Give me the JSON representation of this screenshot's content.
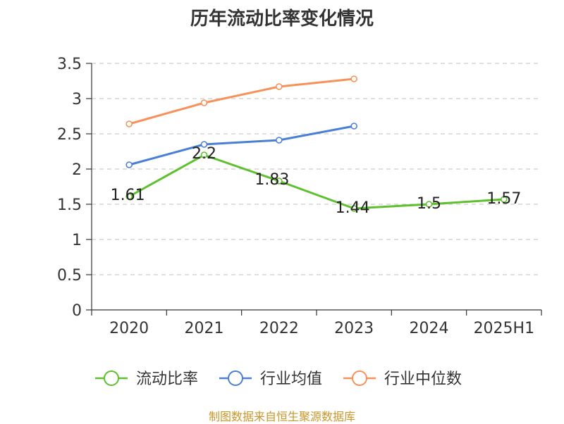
{
  "chart_data": {
    "type": "line",
    "title": "历年流动比率变化情况",
    "categories": [
      "2020",
      "2021",
      "2022",
      "2023",
      "2024",
      "2025H1"
    ],
    "ylim": [
      0,
      3.5
    ],
    "yticks": [
      "0",
      "0.5",
      "1",
      "1.5",
      "2",
      "2.5",
      "3",
      "3.5"
    ],
    "grid": true,
    "legend_position": "bottom",
    "series": [
      {
        "name": "流动比率",
        "color": "#5dc02c",
        "values": [
          1.61,
          2.2,
          1.83,
          1.44,
          1.5,
          1.57
        ],
        "labels": [
          "1.61",
          "2.2",
          "1.83",
          "1.44",
          "1.5",
          "1.57"
        ]
      },
      {
        "name": "行业均值",
        "color": "#4a7fd6",
        "values": [
          2.06,
          2.35,
          2.41,
          2.61,
          null,
          null
        ]
      },
      {
        "name": "行业中位数",
        "color": "#f7915a",
        "values": [
          2.64,
          2.94,
          3.17,
          3.28,
          null,
          null
        ]
      }
    ]
  },
  "source": "制图数据来自恒生聚源数据库"
}
